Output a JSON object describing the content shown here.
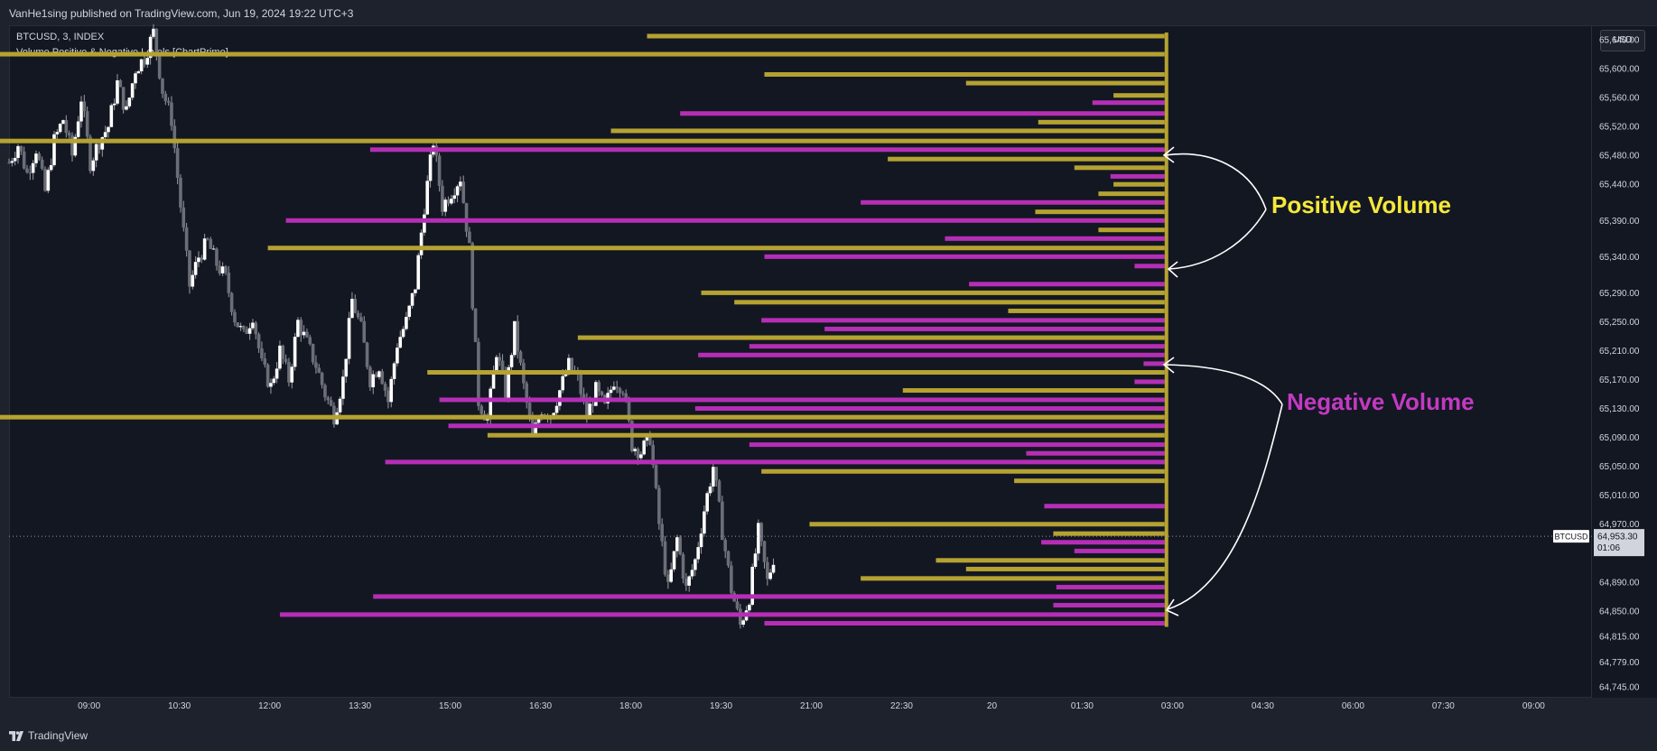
{
  "header": {
    "published_by": "VanHe1sing published on TradingView.com, Jun 19, 2024 19:22 UTC+3"
  },
  "legend": {
    "symbol_line": "BTCUSD, 3, INDEX",
    "indicator_name": "Volume Positive & Negative Levels [ChartPrime]"
  },
  "price_axis": {
    "currency_button": "USD"
  },
  "last_price": {
    "symbol": "BTCUSD",
    "price": "64,953.30",
    "countdown": "01:06",
    "value": 64953.3
  },
  "annotations": {
    "positive": "Positive Volume",
    "negative": "Negative Volume"
  },
  "footer": {
    "brand": "TradingView"
  },
  "colors": {
    "background": "#131722",
    "positive": "#b5a232",
    "negative": "#b52eb5",
    "positive_label": "#f5e83a",
    "negative_label": "#c23ac2",
    "candle": "#ffffff"
  },
  "chart_data": {
    "type": "candlestick",
    "ylim": [
      64730,
      65660
    ],
    "y_ticks": [
      {
        "label": "65,640.00",
        "value": 65640
      },
      {
        "label": "65,600.00",
        "value": 65600
      },
      {
        "label": "65,560.00",
        "value": 65560
      },
      {
        "label": "65,520.00",
        "value": 65520
      },
      {
        "label": "65,480.00",
        "value": 65480
      },
      {
        "label": "65,440.00",
        "value": 65440
      },
      {
        "label": "65,390.00",
        "value": 65390
      },
      {
        "label": "65,340.00",
        "value": 65340
      },
      {
        "label": "65,290.00",
        "value": 65290
      },
      {
        "label": "65,250.00",
        "value": 65250
      },
      {
        "label": "65,210.00",
        "value": 65210
      },
      {
        "label": "65,170.00",
        "value": 65170
      },
      {
        "label": "65,130.00",
        "value": 65130
      },
      {
        "label": "65,090.00",
        "value": 65090
      },
      {
        "label": "65,050.00",
        "value": 65050
      },
      {
        "label": "65,010.00",
        "value": 65010
      },
      {
        "label": "64,970.00",
        "value": 64970
      },
      {
        "label": "64,890.00",
        "value": 64890
      },
      {
        "label": "64,850.00",
        "value": 64850
      },
      {
        "label": "64,815.00",
        "value": 64815
      },
      {
        "label": "64,779.00",
        "value": 64779
      },
      {
        "label": "64,745.00",
        "value": 64745
      }
    ],
    "x_ticks": [
      {
        "label": "09:00",
        "hours": 1.33
      },
      {
        "label": "10:30",
        "hours": 2.83
      },
      {
        "label": "12:00",
        "hours": 4.33
      },
      {
        "label": "13:30",
        "hours": 5.83
      },
      {
        "label": "15:00",
        "hours": 7.33
      },
      {
        "label": "16:30",
        "hours": 8.83
      },
      {
        "label": "18:00",
        "hours": 10.33
      },
      {
        "label": "19:30",
        "hours": 11.83
      },
      {
        "label": "21:00",
        "hours": 13.33
      },
      {
        "label": "22:30",
        "hours": 14.83
      },
      {
        "label": "20",
        "hours": 16.33
      },
      {
        "label": "01:30",
        "hours": 17.83
      },
      {
        "label": "03:00",
        "hours": 19.33
      },
      {
        "label": "04:30",
        "hours": 20.83
      },
      {
        "label": "06:00",
        "hours": 22.33
      },
      {
        "label": "07:30",
        "hours": 23.83
      },
      {
        "label": "09:00",
        "hours": 25.33
      }
    ],
    "x_span_hours": [
      0,
      26.3
    ],
    "close_path": [
      [
        0.0,
        65470
      ],
      [
        0.15,
        65495
      ],
      [
        0.3,
        65455
      ],
      [
        0.45,
        65490
      ],
      [
        0.6,
        65430
      ],
      [
        0.75,
        65500
      ],
      [
        0.9,
        65530
      ],
      [
        1.05,
        65480
      ],
      [
        1.2,
        65560
      ],
      [
        1.35,
        65470
      ],
      [
        1.5,
        65500
      ],
      [
        1.65,
        65520
      ],
      [
        1.8,
        65580
      ],
      [
        1.95,
        65540
      ],
      [
        2.1,
        65600
      ],
      [
        2.25,
        65615
      ],
      [
        2.4,
        65650
      ],
      [
        2.55,
        65570
      ],
      [
        2.7,
        65530
      ],
      [
        2.85,
        65410
      ],
      [
        3.0,
        65300
      ],
      [
        3.15,
        65340
      ],
      [
        3.3,
        65360
      ],
      [
        3.45,
        65330
      ],
      [
        3.6,
        65310
      ],
      [
        3.75,
        65255
      ],
      [
        3.9,
        65230
      ],
      [
        4.05,
        65260
      ],
      [
        4.2,
        65190
      ],
      [
        4.35,
        65160
      ],
      [
        4.5,
        65210
      ],
      [
        4.65,
        65170
      ],
      [
        4.8,
        65250
      ],
      [
        4.95,
        65220
      ],
      [
        5.1,
        65190
      ],
      [
        5.25,
        65150
      ],
      [
        5.4,
        65120
      ],
      [
        5.55,
        65170
      ],
      [
        5.7,
        65280
      ],
      [
        5.85,
        65240
      ],
      [
        6.0,
        65170
      ],
      [
        6.15,
        65190
      ],
      [
        6.3,
        65140
      ],
      [
        6.45,
        65220
      ],
      [
        6.6,
        65250
      ],
      [
        6.75,
        65300
      ],
      [
        6.9,
        65410
      ],
      [
        7.05,
        65500
      ],
      [
        7.2,
        65410
      ],
      [
        7.35,
        65430
      ],
      [
        7.5,
        65450
      ],
      [
        7.65,
        65350
      ],
      [
        7.8,
        65140
      ],
      [
        7.95,
        65115
      ],
      [
        8.1,
        65210
      ],
      [
        8.25,
        65150
      ],
      [
        8.4,
        65240
      ],
      [
        8.55,
        65160
      ],
      [
        8.7,
        65090
      ],
      [
        8.85,
        65130
      ],
      [
        9.0,
        65120
      ],
      [
        9.15,
        65155
      ],
      [
        9.3,
        65190
      ],
      [
        9.45,
        65170
      ],
      [
        9.6,
        65120
      ],
      [
        9.75,
        65155
      ],
      [
        9.9,
        65130
      ],
      [
        10.05,
        65170
      ],
      [
        10.2,
        65160
      ],
      [
        10.35,
        65080
      ],
      [
        10.5,
        65070
      ],
      [
        10.65,
        65090
      ],
      [
        10.8,
        64970
      ],
      [
        10.95,
        64880
      ],
      [
        11.1,
        64950
      ],
      [
        11.25,
        64880
      ],
      [
        11.4,
        64920
      ],
      [
        11.55,
        64990
      ],
      [
        11.7,
        65050
      ],
      [
        11.85,
        64960
      ],
      [
        12.0,
        64880
      ],
      [
        12.15,
        64830
      ],
      [
        12.3,
        64870
      ],
      [
        12.45,
        64960
      ],
      [
        12.6,
        64890
      ],
      [
        12.75,
        64940
      ]
    ],
    "volume_profile_axis_hours": 19.2,
    "volume_profile_max_length_hours": 5.0,
    "volume_profile": [
      {
        "price": 65645,
        "volume": 1.72,
        "sign": "positive"
      },
      {
        "price": 65620,
        "volume": 5.0,
        "sign": "positive"
      },
      {
        "price": 65592,
        "volume": 1.33,
        "sign": "positive"
      },
      {
        "price": 65580,
        "volume": 0.66,
        "sign": "positive"
      },
      {
        "price": 65563,
        "volume": 0.17,
        "sign": "positive"
      },
      {
        "price": 65553,
        "volume": 0.24,
        "sign": "negative"
      },
      {
        "price": 65538,
        "volume": 1.61,
        "sign": "negative"
      },
      {
        "price": 65526,
        "volume": 0.42,
        "sign": "positive"
      },
      {
        "price": 65514,
        "volume": 1.84,
        "sign": "positive"
      },
      {
        "price": 65500,
        "volume": 4.3,
        "sign": "positive"
      },
      {
        "price": 65488,
        "volume": 2.64,
        "sign": "negative"
      },
      {
        "price": 65475,
        "volume": 0.92,
        "sign": "positive"
      },
      {
        "price": 65463,
        "volume": 0.3,
        "sign": "positive"
      },
      {
        "price": 65451,
        "volume": 0.18,
        "sign": "negative"
      },
      {
        "price": 65440,
        "volume": 0.17,
        "sign": "positive"
      },
      {
        "price": 65427,
        "volume": 0.22,
        "sign": "positive"
      },
      {
        "price": 65415,
        "volume": 1.01,
        "sign": "negative"
      },
      {
        "price": 65402,
        "volume": 0.43,
        "sign": "positive"
      },
      {
        "price": 65390,
        "volume": 2.92,
        "sign": "negative"
      },
      {
        "price": 65377,
        "volume": 0.22,
        "sign": "positive"
      },
      {
        "price": 65365,
        "volume": 0.73,
        "sign": "negative"
      },
      {
        "price": 65352,
        "volume": 2.98,
        "sign": "positive"
      },
      {
        "price": 65340,
        "volume": 1.33,
        "sign": "negative"
      },
      {
        "price": 65327,
        "volume": 0.1,
        "sign": "negative"
      },
      {
        "price": 65302,
        "volume": 0.65,
        "sign": "negative"
      },
      {
        "price": 65290,
        "volume": 1.54,
        "sign": "positive"
      },
      {
        "price": 65277,
        "volume": 1.43,
        "sign": "positive"
      },
      {
        "price": 65265,
        "volume": 0.52,
        "sign": "positive"
      },
      {
        "price": 65252,
        "volume": 1.34,
        "sign": "negative"
      },
      {
        "price": 65240,
        "volume": 1.13,
        "sign": "negative"
      },
      {
        "price": 65228,
        "volume": 1.95,
        "sign": "positive"
      },
      {
        "price": 65216,
        "volume": 1.38,
        "sign": "negative"
      },
      {
        "price": 65204,
        "volume": 1.55,
        "sign": "negative"
      },
      {
        "price": 65192,
        "volume": 0.07,
        "sign": "negative"
      },
      {
        "price": 65180,
        "volume": 2.45,
        "sign": "positive"
      },
      {
        "price": 65167,
        "volume": 0.1,
        "sign": "negative"
      },
      {
        "price": 65155,
        "volume": 0.87,
        "sign": "positive"
      },
      {
        "price": 65142,
        "volume": 2.41,
        "sign": "negative"
      },
      {
        "price": 65130,
        "volume": 1.56,
        "sign": "negative"
      },
      {
        "price": 65118,
        "volume": 5.34,
        "sign": "positive"
      },
      {
        "price": 65106,
        "volume": 2.38,
        "sign": "negative"
      },
      {
        "price": 65093,
        "volume": 2.25,
        "sign": "positive"
      },
      {
        "price": 65080,
        "volume": 1.38,
        "sign": "negative"
      },
      {
        "price": 65068,
        "volume": 0.46,
        "sign": "negative"
      },
      {
        "price": 65056,
        "volume": 2.59,
        "sign": "negative"
      },
      {
        "price": 65043,
        "volume": 1.34,
        "sign": "positive"
      },
      {
        "price": 65030,
        "volume": 0.5,
        "sign": "positive"
      },
      {
        "price": 64995,
        "volume": 0.4,
        "sign": "negative"
      },
      {
        "price": 64970,
        "volume": 1.18,
        "sign": "positive"
      },
      {
        "price": 64957,
        "volume": 0.37,
        "sign": "positive"
      },
      {
        "price": 64945,
        "volume": 0.41,
        "sign": "negative"
      },
      {
        "price": 64933,
        "volume": 0.3,
        "sign": "negative"
      },
      {
        "price": 64920,
        "volume": 0.76,
        "sign": "positive"
      },
      {
        "price": 64908,
        "volume": 0.66,
        "sign": "positive"
      },
      {
        "price": 64895,
        "volume": 1.01,
        "sign": "positive"
      },
      {
        "price": 64883,
        "volume": 0.36,
        "sign": "negative"
      },
      {
        "price": 64870,
        "volume": 2.63,
        "sign": "negative"
      },
      {
        "price": 64858,
        "volume": 0.37,
        "sign": "negative"
      },
      {
        "price": 64845,
        "volume": 2.94,
        "sign": "negative"
      },
      {
        "price": 64833,
        "volume": 1.33,
        "sign": "negative"
      }
    ]
  }
}
